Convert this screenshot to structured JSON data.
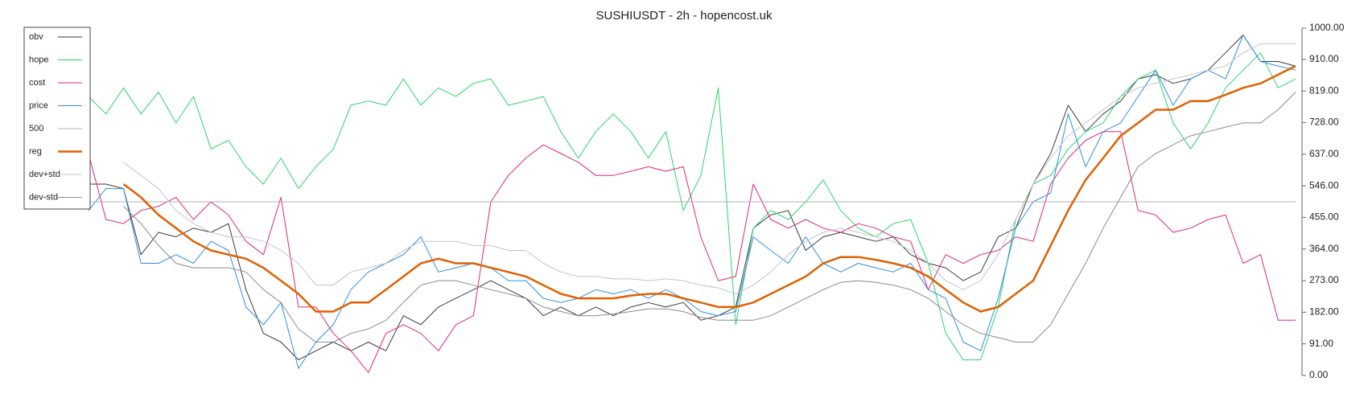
{
  "chart_data": {
    "type": "line",
    "title": "SUSHIUSDT - 2h - hopencost.uk",
    "ylim": [
      0,
      1000
    ],
    "yticks": [
      {
        "value": 0,
        "label": "0.00"
      },
      {
        "value": 91,
        "label": "91.00"
      },
      {
        "value": 182,
        "label": "182.00"
      },
      {
        "value": 273,
        "label": "273.00"
      },
      {
        "value": 364,
        "label": "364.00"
      },
      {
        "value": 455,
        "label": "455.00"
      },
      {
        "value": 546,
        "label": "546.00"
      },
      {
        "value": 637,
        "label": "637.00"
      },
      {
        "value": 728,
        "label": "728.00"
      },
      {
        "value": 819,
        "label": "819.00"
      },
      {
        "value": 910,
        "label": "910.00"
      },
      {
        "value": 1000,
        "label": "1000.00"
      }
    ],
    "legend": "upper left",
    "series": [
      {
        "name": "obv",
        "color": "#3a3a3a",
        "values": [
          551,
          551,
          538,
          348,
          412,
          399,
          424,
          412,
          437,
          247,
          121,
          96,
          45,
          71,
          96,
          71,
          96,
          71,
          172,
          146,
          197,
          222,
          247,
          273,
          247,
          222,
          172,
          197,
          172,
          197,
          172,
          197,
          210,
          197,
          210,
          159,
          172,
          197,
          424,
          462,
          475,
          360,
          399,
          412,
          399,
          386,
          399,
          348,
          323,
          310,
          273,
          298,
          399,
          424,
          551,
          639,
          778,
          702,
          753,
          790,
          854,
          866,
          841,
          854,
          879,
          929,
          980,
          904,
          904,
          891
        ]
      },
      {
        "name": "hope",
        "color": "#2bd46d",
        "values": [
          803,
          753,
          828,
          753,
          816,
          727,
          803,
          652,
          677,
          601,
          551,
          626,
          538,
          601,
          652,
          778,
          790,
          778,
          854,
          778,
          828,
          803,
          841,
          854,
          778,
          790,
          803,
          702,
          626,
          702,
          753,
          702,
          626,
          702,
          475,
          576,
          828,
          146,
          424,
          475,
          449,
          500,
          563,
          475,
          424,
          399,
          437,
          449,
          323,
          121,
          45,
          45,
          197,
          449,
          551,
          576,
          652,
          702,
          727,
          803,
          854,
          879,
          727,
          652,
          727,
          828,
          879,
          929,
          828,
          854
        ]
      },
      {
        "name": "cost",
        "color": "#e0267a",
        "values": [
          639,
          449,
          437,
          475,
          487,
          513,
          449,
          500,
          462,
          386,
          348,
          513,
          197,
          197,
          121,
          71,
          8,
          121,
          146,
          121,
          71,
          146,
          172,
          500,
          576,
          626,
          664,
          639,
          614,
          576,
          576,
          588,
          601,
          588,
          601,
          399,
          273,
          285,
          551,
          449,
          424,
          449,
          424,
          412,
          437,
          424,
          399,
          386,
          247,
          348,
          323,
          348,
          360,
          399,
          386,
          551,
          626,
          677,
          702,
          702,
          475,
          462,
          412,
          424,
          449,
          462,
          323,
          348,
          159,
          159
        ]
      },
      {
        "name": "price",
        "color": "#2d8ee0",
        "values": [
          475,
          538,
          538,
          323,
          323,
          348,
          323,
          386,
          360,
          197,
          146,
          210,
          20,
          96,
          146,
          247,
          298,
          323,
          348,
          399,
          298,
          310,
          323,
          310,
          273,
          273,
          222,
          210,
          222,
          247,
          235,
          247,
          222,
          247,
          222,
          184,
          172,
          184,
          399,
          360,
          323,
          399,
          323,
          298,
          323,
          310,
          298,
          323,
          247,
          222,
          96,
          71,
          222,
          424,
          500,
          525,
          753,
          601,
          702,
          727,
          803,
          879,
          778,
          854,
          879,
          854,
          980,
          904,
          891,
          879
        ]
      },
      {
        "name": "500",
        "color": "#b0b0b0",
        "values": [
          500,
          500,
          500,
          500,
          500,
          500,
          500,
          500,
          500,
          500,
          500,
          500,
          500,
          500,
          500,
          500,
          500,
          500,
          500,
          500,
          500,
          500,
          500,
          500,
          500,
          500,
          500,
          500,
          500,
          500,
          500,
          500,
          500,
          500,
          500,
          500,
          500,
          500,
          500,
          500,
          500,
          500,
          500,
          500,
          500,
          500,
          500,
          500,
          500,
          500,
          500,
          500,
          500,
          500,
          500,
          500,
          500,
          500,
          500,
          500,
          500,
          500,
          500,
          500,
          500,
          500,
          500,
          500,
          500,
          500
        ]
      },
      {
        "name": "reg",
        "color": "#e06000",
        "line_width": 2.5,
        "values": [
          null,
          null,
          551,
          513,
          462,
          424,
          386,
          360,
          348,
          336,
          310,
          273,
          235,
          184,
          184,
          210,
          210,
          247,
          285,
          323,
          336,
          323,
          323,
          310,
          298,
          285,
          260,
          235,
          222,
          222,
          222,
          230,
          235,
          235,
          222,
          210,
          197,
          197,
          210,
          235,
          260,
          285,
          323,
          341,
          341,
          333,
          323,
          310,
          285,
          247,
          210,
          184,
          197,
          235,
          273,
          374,
          475,
          563,
          626,
          690,
          727,
          765,
          765,
          790,
          790,
          808,
          828,
          841,
          866,
          891
        ]
      },
      {
        "name": "dev+std",
        "color": "#c4c4c4",
        "values": [
          null,
          null,
          614,
          576,
          538,
          475,
          437,
          412,
          399,
          399,
          386,
          360,
          323,
          260,
          260,
          298,
          310,
          323,
          360,
          386,
          386,
          386,
          374,
          374,
          360,
          360,
          323,
          298,
          285,
          285,
          278,
          278,
          273,
          278,
          273,
          260,
          252,
          235,
          260,
          298,
          348,
          386,
          412,
          424,
          412,
          399,
          386,
          360,
          323,
          273,
          247,
          273,
          348,
          449,
          551,
          626,
          690,
          727,
          765,
          803,
          828,
          841,
          854,
          866,
          879,
          891,
          929,
          955,
          955,
          955
        ]
      },
      {
        "name": "dev-std",
        "color": "#8a8a8a",
        "values": [
          null,
          null,
          487,
          437,
          374,
          323,
          310,
          310,
          310,
          298,
          247,
          210,
          134,
          96,
          96,
          121,
          134,
          159,
          210,
          260,
          273,
          273,
          260,
          247,
          235,
          222,
          197,
          184,
          172,
          172,
          177,
          184,
          192,
          192,
          184,
          167,
          159,
          159,
          159,
          172,
          197,
          222,
          247,
          268,
          273,
          268,
          260,
          247,
          222,
          184,
          146,
          121,
          109,
          96,
          96,
          146,
          235,
          323,
          424,
          513,
          601,
          639,
          664,
          690,
          702,
          715,
          727,
          727,
          765,
          816
        ]
      }
    ]
  }
}
